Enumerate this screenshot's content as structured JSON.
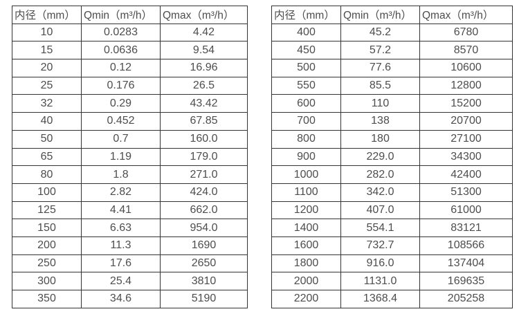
{
  "colors": {
    "background": "#ffffff",
    "border": "#333333",
    "text": "#4d4d4d"
  },
  "left_table": {
    "headers": {
      "diameter": "内径（mm）",
      "qmin": "Qmin（m³/h）",
      "qmax": "Qmax（m³/h）"
    },
    "rows": [
      [
        "10",
        "0.0283",
        "4.42"
      ],
      [
        "15",
        "0.0636",
        "9.54"
      ],
      [
        "20",
        "0.12",
        "16.96"
      ],
      [
        "25",
        "0.176",
        "26.5"
      ],
      [
        "32",
        "0.29",
        "43.42"
      ],
      [
        "40",
        "0.452",
        "67.85"
      ],
      [
        "50",
        "0.7",
        "160.0"
      ],
      [
        "65",
        "1.19",
        "179.0"
      ],
      [
        "80",
        "1.8",
        "271.0"
      ],
      [
        "100",
        "2.82",
        "424.0"
      ],
      [
        "125",
        "4.41",
        "662.0"
      ],
      [
        "150",
        "6.63",
        "954.0"
      ],
      [
        "200",
        "11.3",
        "1690"
      ],
      [
        "250",
        "17.6",
        "2650"
      ],
      [
        "300",
        "25.4",
        "3810"
      ],
      [
        "350",
        "34.6",
        "5190"
      ]
    ]
  },
  "right_table": {
    "headers": {
      "diameter": "内径（mm）",
      "qmin": "Qmin（m³/h）",
      "qmax": "Qmax（m³/h）"
    },
    "rows": [
      [
        "400",
        "45.2",
        "6780"
      ],
      [
        "450",
        "57.2",
        "8570"
      ],
      [
        "500",
        "77.6",
        "10600"
      ],
      [
        "550",
        "85.5",
        "12800"
      ],
      [
        "600",
        "110",
        "15200"
      ],
      [
        "700",
        "138",
        "20700"
      ],
      [
        "800",
        "180",
        "27100"
      ],
      [
        "900",
        "229.0",
        "34300"
      ],
      [
        "1000",
        "282.0",
        "42400"
      ],
      [
        "1100",
        "342.0",
        "51300"
      ],
      [
        "1200",
        "407.0",
        "61000"
      ],
      [
        "1400",
        "554.1",
        "83121"
      ],
      [
        "1600",
        "732.7",
        "108566"
      ],
      [
        "1800",
        "916.0",
        "137404"
      ],
      [
        "2000",
        "1131.0",
        "169635"
      ],
      [
        "2200",
        "1368.4",
        "205258"
      ]
    ]
  }
}
